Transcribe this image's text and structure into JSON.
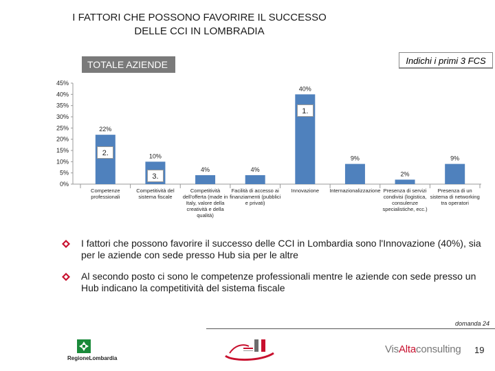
{
  "slide": {
    "title": "I FATTORI CHE POSSONO FAVORIRE IL SUCCESSO DELLE CCI IN LOMBRADIA",
    "segment_label": "TOTALE AZIENDE",
    "fcs_label": "Indichi i primi 3 FCS"
  },
  "chart_data": {
    "type": "bar",
    "categories": [
      [
        "Competenze",
        "professionali"
      ],
      [
        "Competitività del",
        "sistema fiscale"
      ],
      [
        "Competitività",
        "dell'offerta (made in",
        "Italy, valore della",
        "creatività e della",
        "qualità)"
      ],
      [
        "Facilità di accesso ai",
        "finanziamenti (pubblici",
        "e privati)"
      ],
      [
        "Innovazione"
      ],
      [
        "Internazionalizzazione"
      ],
      [
        "Presenza di servizi",
        "condivisi (logistica,",
        "consulenze",
        "specialistiche, ecc.)"
      ],
      [
        "Presenza di un",
        "sistema di networking",
        "tra operatori"
      ]
    ],
    "values": [
      22,
      10,
      4,
      4,
      40,
      9,
      2,
      9
    ],
    "value_labels": [
      "22%",
      "10%",
      "4%",
      "4%",
      "40%",
      "9%",
      "2%",
      "9%"
    ],
    "y_ticks": [
      "0%",
      "5%",
      "10%",
      "15%",
      "20%",
      "25%",
      "30%",
      "35%",
      "40%",
      "45%"
    ],
    "ylim": [
      0,
      45
    ],
    "ranks": [
      {
        "category_index": 4,
        "label": "1."
      },
      {
        "category_index": 0,
        "label": "2."
      },
      {
        "category_index": 1,
        "label": "3."
      }
    ],
    "bar_color": "#4f81bd",
    "grid": false
  },
  "bullets": [
    "I fattori che possono favorire il successo delle CCI in Lombardia sono l'Innovazione (40%), sia per le aziende con sede presso Hub sia per le altre",
    "Al secondo posto ci sono le competenze professionali mentre le aziende con sede presso un Hub indicano la competitività del sistema fiscale"
  ],
  "footer": {
    "domanda": "domanda 24",
    "region_logo_text": "RegioneLombardia",
    "consulting_logo_a": "Vis",
    "consulting_logo_b": "Alta",
    "consulting_logo_c": "consulting",
    "page_number": "19"
  },
  "colors": {
    "accent": "#c8102e",
    "bar": "#4f81bd",
    "badge": "#7a7a7a"
  }
}
